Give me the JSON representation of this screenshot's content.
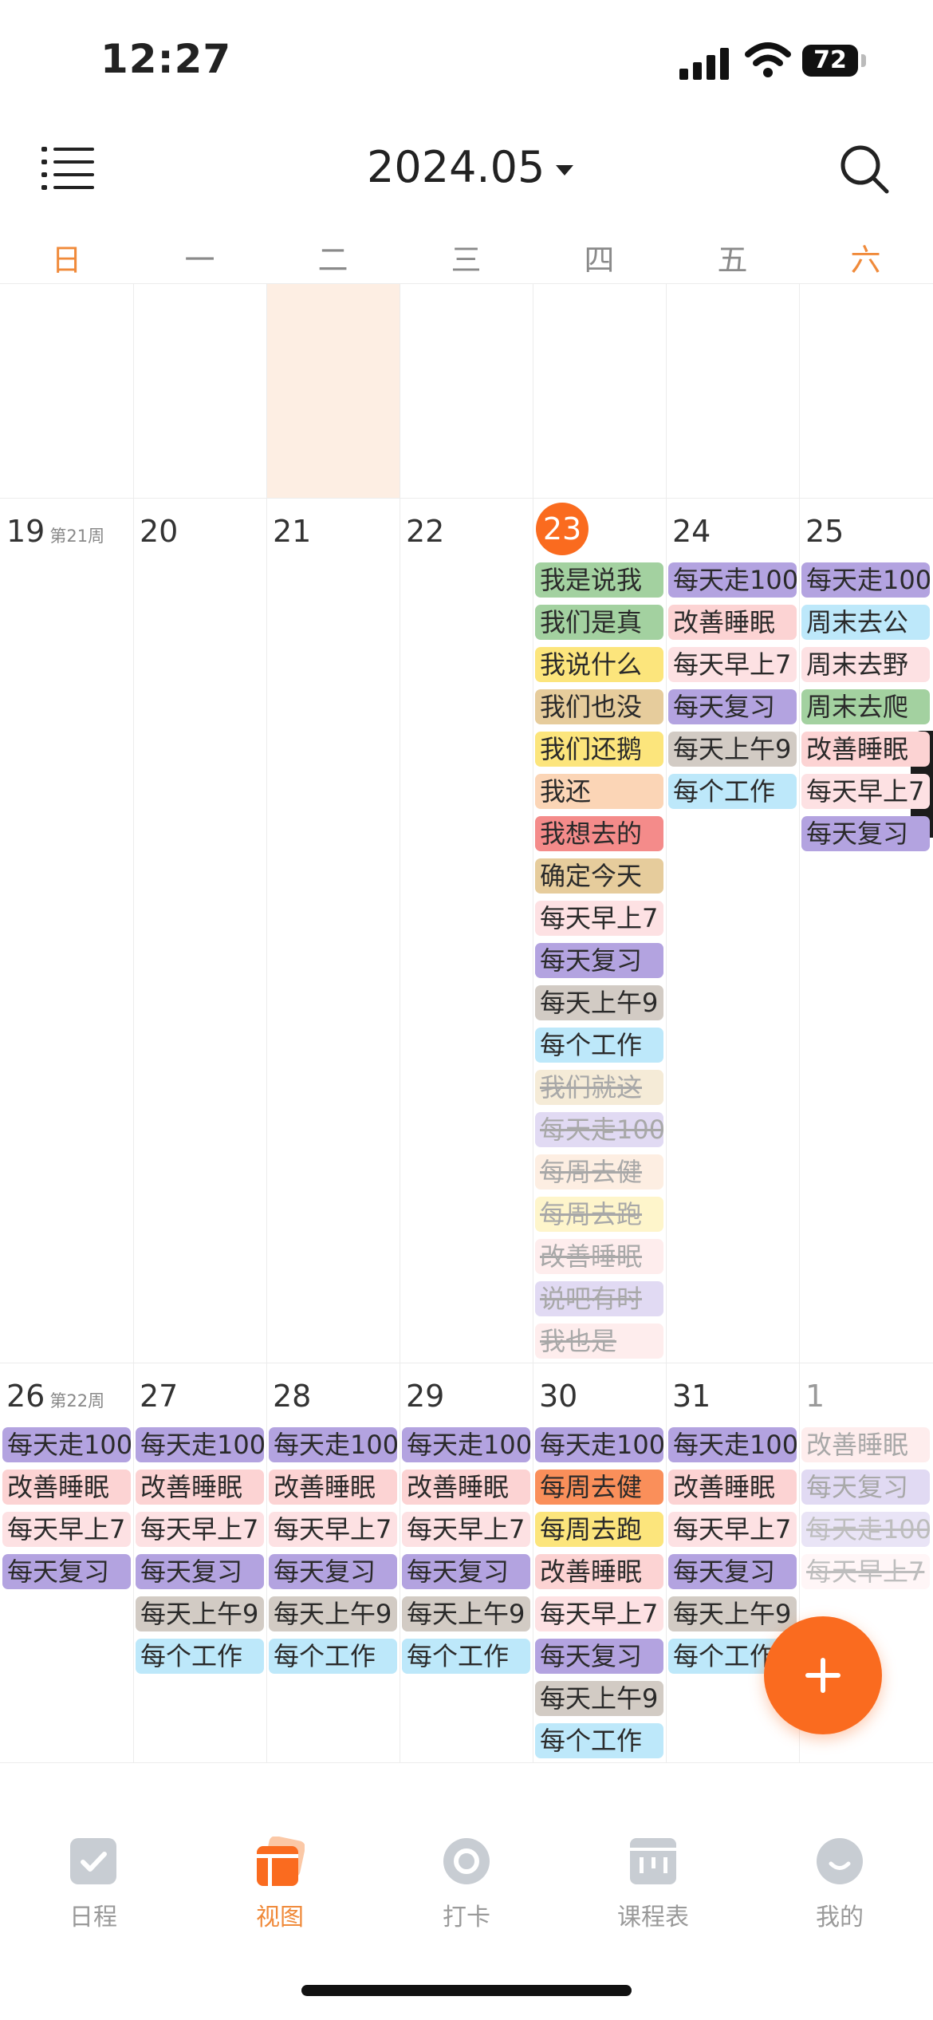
{
  "status_bar": {
    "time": "12:27",
    "battery": "72"
  },
  "header": {
    "title": "2024.05",
    "menu_icon": "list-menu-icon",
    "search_icon": "search-icon"
  },
  "weekdays": [
    "日",
    "一",
    "二",
    "三",
    "四",
    "五",
    "六"
  ],
  "colors": {
    "accent": "#fa6b1f",
    "green": "#a3d1a0",
    "yellow": "#fce57c",
    "tan": "#e6cc9c",
    "peach": "#fbd5b6",
    "red": "#f48b8a",
    "pink": "#fde1e3",
    "purple": "#b3a3e0",
    "gray": "#d2cbc4",
    "blue": "#bde8fa",
    "lightpink": "#fcd3d3"
  },
  "weeks": [
    {
      "days": [
        {
          "label": "19",
          "week": "第21周"
        },
        {
          "label": "20"
        },
        {
          "label": "21"
        },
        {
          "label": "22"
        },
        {
          "label": "23",
          "today": true
        },
        {
          "label": "24"
        },
        {
          "label": "25"
        }
      ]
    },
    {
      "days": [
        {
          "label": "26",
          "week": "第22周"
        },
        {
          "label": "27"
        },
        {
          "label": "28"
        },
        {
          "label": "29"
        },
        {
          "label": "30"
        },
        {
          "label": "31"
        },
        {
          "label": "1",
          "other": true
        }
      ]
    }
  ],
  "events": {
    "w1": [
      [],
      [],
      [],
      [],
      [
        {
          "t": "我是说我",
          "c": "green"
        },
        {
          "t": "我们是真",
          "c": "green"
        },
        {
          "t": "我说什么",
          "c": "yellow"
        },
        {
          "t": "我们也没",
          "c": "tan"
        },
        {
          "t": "我们还鹅",
          "c": "yellow"
        },
        {
          "t": "我还",
          "c": "peach"
        },
        {
          "t": "我想去的",
          "c": "red"
        },
        {
          "t": "确定今天",
          "c": "tan"
        },
        {
          "t": "每天早上7",
          "c": "pink"
        },
        {
          "t": "每天复习",
          "c": "purple"
        },
        {
          "t": "每天上午9",
          "c": "gray"
        },
        {
          "t": "每个工作",
          "c": "blue"
        },
        {
          "t": "我们就这",
          "c": "tan",
          "done": true
        },
        {
          "t": "每天走100",
          "c": "purple",
          "done": true
        },
        {
          "t": "每周去健",
          "c": "peach",
          "done": true
        },
        {
          "t": "每周去跑",
          "c": "yellow",
          "done": true
        },
        {
          "t": "改善睡眠",
          "c": "lightpink",
          "done": true
        },
        {
          "t": "说吧有时",
          "c": "purple",
          "done": true
        },
        {
          "t": "我也是",
          "c": "lightpink",
          "done": true
        }
      ],
      [
        {
          "t": "每天走100",
          "c": "purple"
        },
        {
          "t": "改善睡眠",
          "c": "lightpink"
        },
        {
          "t": "每天早上7",
          "c": "pink"
        },
        {
          "t": "每天复习",
          "c": "purple"
        },
        {
          "t": "每天上午9",
          "c": "gray"
        },
        {
          "t": "每个工作",
          "c": "blue"
        }
      ],
      [
        {
          "t": "每天走100",
          "c": "purple"
        },
        {
          "t": "周末去公",
          "c": "blue"
        },
        {
          "t": "周末去野",
          "c": "pink"
        },
        {
          "t": "周末去爬",
          "c": "green"
        },
        {
          "t": "改善睡眠",
          "c": "lightpink"
        },
        {
          "t": "每天早上7",
          "c": "pink"
        },
        {
          "t": "每天复习",
          "c": "purple"
        }
      ]
    ],
    "w2": [
      [
        {
          "t": "每天走100",
          "c": "purple"
        },
        {
          "t": "改善睡眠",
          "c": "lightpink"
        },
        {
          "t": "每天早上7",
          "c": "pink"
        },
        {
          "t": "每天复习",
          "c": "purple"
        }
      ],
      [
        {
          "t": "每天走100",
          "c": "purple"
        },
        {
          "t": "改善睡眠",
          "c": "lightpink"
        },
        {
          "t": "每天早上7",
          "c": "pink"
        },
        {
          "t": "每天复习",
          "c": "purple"
        },
        {
          "t": "每天上午9",
          "c": "gray"
        },
        {
          "t": "每个工作",
          "c": "blue"
        }
      ],
      [
        {
          "t": "每天走100",
          "c": "purple"
        },
        {
          "t": "改善睡眠",
          "c": "lightpink"
        },
        {
          "t": "每天早上7",
          "c": "pink"
        },
        {
          "t": "每天复习",
          "c": "purple"
        },
        {
          "t": "每天上午9",
          "c": "gray"
        },
        {
          "t": "每个工作",
          "c": "blue"
        }
      ],
      [
        {
          "t": "每天走100",
          "c": "purple"
        },
        {
          "t": "改善睡眠",
          "c": "lightpink"
        },
        {
          "t": "每天早上7",
          "c": "pink"
        },
        {
          "t": "每天复习",
          "c": "purple"
        },
        {
          "t": "每天上午9",
          "c": "gray"
        },
        {
          "t": "每个工作",
          "c": "blue"
        }
      ],
      [
        {
          "t": "每天走100",
          "c": "purple"
        },
        {
          "t": "每周去健",
          "c": "orange"
        },
        {
          "t": "每周去跑",
          "c": "yellow"
        },
        {
          "t": "改善睡眠",
          "c": "lightpink"
        },
        {
          "t": "每天早上7",
          "c": "pink"
        },
        {
          "t": "每天复习",
          "c": "purple"
        },
        {
          "t": "每天上午9",
          "c": "gray"
        },
        {
          "t": "每个工作",
          "c": "blue"
        }
      ],
      [
        {
          "t": "每天走100",
          "c": "purple"
        },
        {
          "t": "改善睡眠",
          "c": "lightpink"
        },
        {
          "t": "每天早上7",
          "c": "pink"
        },
        {
          "t": "每天复习",
          "c": "purple"
        },
        {
          "t": "每天上午9",
          "c": "gray"
        },
        {
          "t": "每个工作",
          "c": "blue"
        }
      ],
      [
        {
          "t": "改善睡眠",
          "c": "lightpink",
          "faded": true
        },
        {
          "t": "每天复习",
          "c": "purple",
          "faded": true
        },
        {
          "t": "每天走100",
          "c": "purple",
          "faded": true,
          "done": true
        },
        {
          "t": "每天早上7",
          "c": "pink",
          "faded": true,
          "done": true
        }
      ]
    ]
  },
  "tabs": [
    {
      "label": "日程",
      "icon": "checkbox-icon"
    },
    {
      "label": "视图",
      "icon": "calendar-view-icon",
      "active": true
    },
    {
      "label": "打卡",
      "icon": "target-icon"
    },
    {
      "label": "课程表",
      "icon": "timetable-icon"
    },
    {
      "label": "我的",
      "icon": "profile-icon"
    }
  ],
  "fab_icon": "plus-icon"
}
